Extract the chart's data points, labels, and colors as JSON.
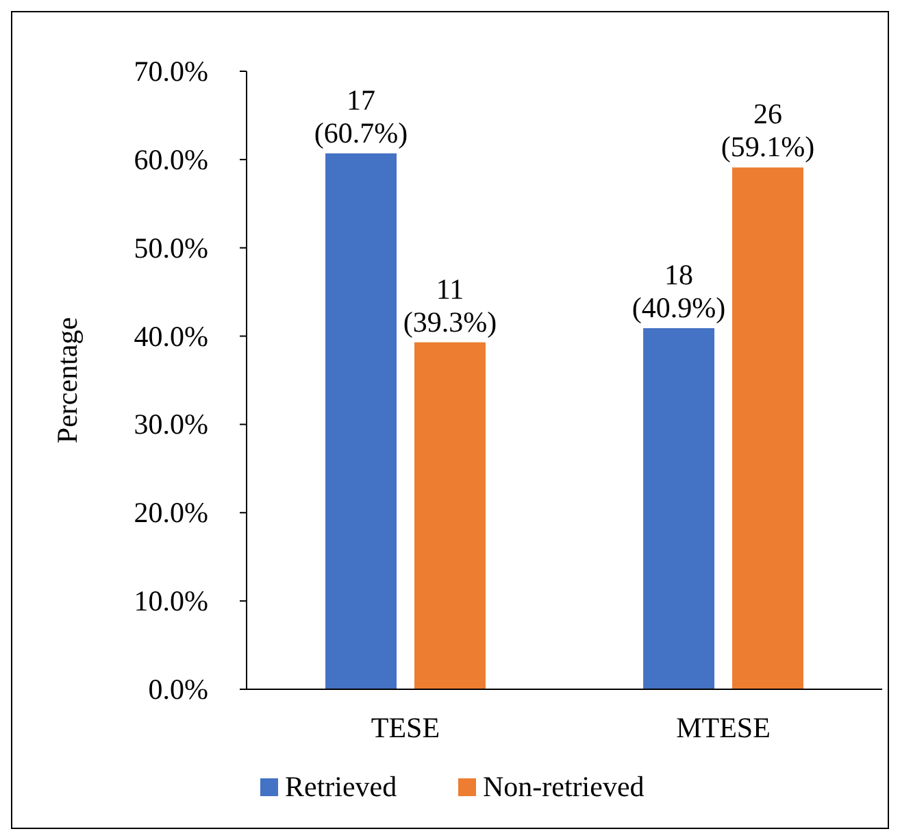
{
  "chart_data": {
    "type": "bar",
    "ylabel": "Percentage",
    "categories": [
      "TESE",
      "MTESE"
    ],
    "series": [
      {
        "name": "Retrieved",
        "color": "#4472c4",
        "values": [
          60.7,
          40.9
        ],
        "value_labels": [
          "17 (60.7%)",
          "18 (40.9%)"
        ]
      },
      {
        "name": "Non-retrieved",
        "color": "#ed7d31",
        "values": [
          39.3,
          59.1
        ],
        "value_labels": [
          "11 (39.3%)",
          "26 (59.1%)"
        ]
      }
    ],
    "ylim": [
      0,
      70
    ],
    "yticks": [
      {
        "value": 0,
        "label": "0.0%"
      },
      {
        "value": 10,
        "label": "10.0%"
      },
      {
        "value": 20,
        "label": "20.0%"
      },
      {
        "value": 30,
        "label": "30.0%"
      },
      {
        "value": 40,
        "label": "40.0%"
      },
      {
        "value": 50,
        "label": "50.0%"
      },
      {
        "value": 60,
        "label": "60.0%"
      },
      {
        "value": 70,
        "label": "70.0%"
      }
    ],
    "grid": false,
    "legend": "bottom"
  }
}
